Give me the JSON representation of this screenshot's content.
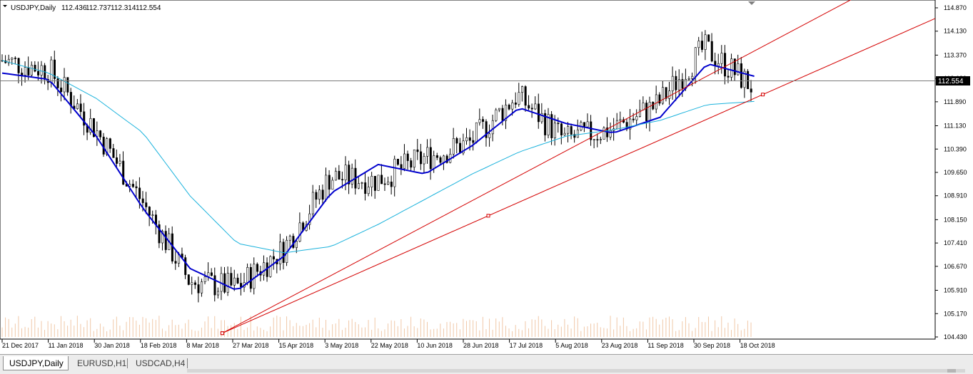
{
  "header": {
    "symbol": "USDJPY,Daily",
    "open": "112.436",
    "high": "112.737",
    "low": "112.314",
    "close": "112.554"
  },
  "price_axis": {
    "ticks": [
      "114.870",
      "114.130",
      "113.370",
      "112.630",
      "111.890",
      "111.130",
      "110.390",
      "109.650",
      "108.910",
      "108.150",
      "107.410",
      "106.670",
      "105.910",
      "105.170",
      "104.430"
    ],
    "current_label": "112.554"
  },
  "time_axis": {
    "labels": [
      "21 Dec 2017",
      "11 Jan 2018",
      "30 Jan 2018",
      "18 Feb 2018",
      "8 Mar 2018",
      "27 Mar 2018",
      "15 Apr 2018",
      "3 May 2018",
      "22 May 2018",
      "10 Jun 2018",
      "28 Jun 2018",
      "17 Jul 2018",
      "5 Aug 2018",
      "23 Aug 2018",
      "11 Sep 2018",
      "30 Sep 2018",
      "18 Oct 2018"
    ]
  },
  "tabs": [
    {
      "label": "USDJPY,Daily",
      "active": true
    },
    {
      "label": "EURUSD,H1",
      "active": false
    },
    {
      "label": "USDCAD,H4",
      "active": false
    }
  ],
  "colors": {
    "background": "#ffffff",
    "bars": "#000000",
    "fast_ma": "#0000cd",
    "slow_ma": "#1ab2dc",
    "trendline": "#d40000",
    "volume": "#f0c8a8",
    "grid_axis": "#000000"
  },
  "chart_data": {
    "type": "line",
    "title": "USDJPY,Daily",
    "ylim": [
      104.43,
      114.87
    ],
    "xlabel": "",
    "ylabel": "",
    "grid": false,
    "current_price": 112.554,
    "x": [
      "21 Dec 2017",
      "11 Jan 2018",
      "30 Jan 2018",
      "18 Feb 2018",
      "8 Mar 2018",
      "27 Mar 2018",
      "15 Apr 2018",
      "3 May 2018",
      "22 May 2018",
      "10 Jun 2018",
      "28 Jun 2018",
      "17 Jul 2018",
      "5 Aug 2018",
      "23 Aug 2018",
      "11 Sep 2018",
      "30 Sep 2018",
      "18 Oct 2018"
    ],
    "series": [
      {
        "values": [
          113.2,
          112.9,
          111.0,
          108.7,
          106.2,
          106.0,
          107.2,
          109.5,
          109.4,
          110.1,
          110.6,
          112.1,
          110.7,
          111.0,
          111.8,
          113.6,
          112.4
        ]
      },
      {
        "values": [
          112.8,
          112.6,
          110.8,
          108.5,
          106.6,
          105.9,
          107.0,
          109.0,
          109.9,
          109.6,
          110.5,
          111.7,
          111.2,
          110.9,
          111.4,
          113.1,
          112.7
        ]
      },
      {
        "values": [
          113.2,
          112.8,
          112.0,
          110.9,
          108.9,
          107.4,
          107.1,
          107.3,
          108.0,
          108.8,
          109.6,
          110.3,
          110.8,
          111.0,
          111.3,
          111.8,
          111.9
        ]
      }
    ],
    "trendlines": [
      {
        "from": [
          "8 Mar 2018",
          104.55
        ],
        "to": [
          "18 Oct 2018",
          112.0
        ]
      },
      {
        "from": [
          "8 Mar 2018",
          104.55
        ],
        "to": [
          "18 Oct 2018",
          113.5
        ]
      }
    ]
  }
}
